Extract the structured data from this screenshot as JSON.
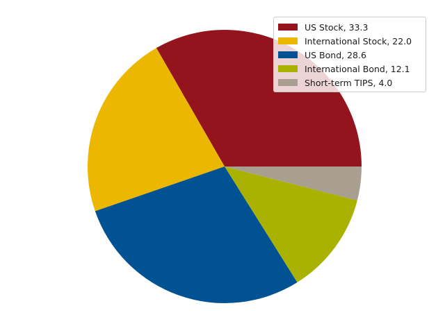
{
  "chart_data": {
    "type": "pie",
    "title": "",
    "legend_position": "top-right",
    "start_angle_deg": 0,
    "direction": "counterclockwise",
    "slices": [
      {
        "label": "US Stock, 33.3",
        "value": 33.3,
        "color": "#94141e"
      },
      {
        "label": "International Stock, 22.0",
        "value": 22.0,
        "color": "#ebb700"
      },
      {
        "label": "US Bond, 28.6",
        "value": 28.6,
        "color": "#005293"
      },
      {
        "label": "International Bond, 12.1",
        "value": 12.1,
        "color": "#a9b200"
      },
      {
        "label": "Short-term TIPS, 4.0",
        "value": 4.0,
        "color": "#a89f91"
      }
    ]
  }
}
